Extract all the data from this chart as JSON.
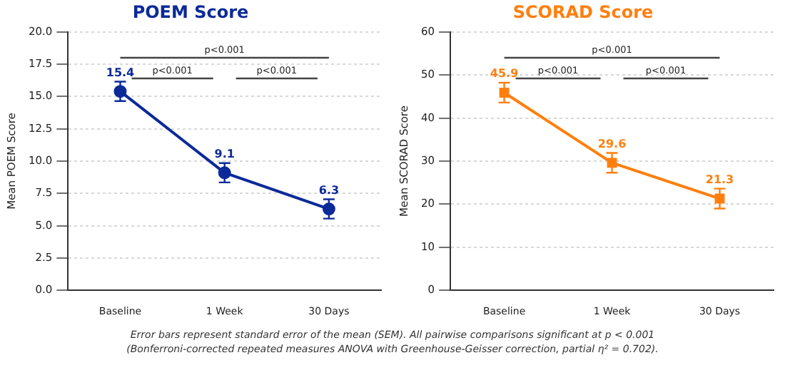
{
  "chart_data": [
    {
      "type": "line",
      "title": "POEM Score",
      "ylabel": "Mean POEM Score",
      "categories": [
        "Baseline",
        "1 Week",
        "30 Days"
      ],
      "series": [
        {
          "color": "#0c2a98",
          "values": [
            15.4,
            9.1,
            6.3
          ],
          "errors": [
            0.75,
            0.75,
            0.75
          ]
        }
      ],
      "data_labels": true,
      "marker": "circle",
      "line_style": "solid",
      "grid": "y",
      "legend": false,
      "ylim": [
        0,
        20
      ],
      "yticks": [
        {
          "value": 0,
          "label": "0.0"
        },
        2.5,
        {
          "value": 5,
          "label": "5.0"
        },
        7.5,
        {
          "value": 10,
          "label": "10.0"
        },
        12.5,
        {
          "value": 15,
          "label": "15.0"
        },
        17.5,
        {
          "value": 20,
          "label": "20.0"
        }
      ],
      "annotations": [
        "p<0.001",
        "p<0.001",
        "p<0.001"
      ]
    },
    {
      "type": "line",
      "title": "SCORAD Score",
      "ylabel": "Mean SCORAD Score",
      "categories": [
        "Baseline",
        "1 Week",
        "30 Days"
      ],
      "series": [
        {
          "color": "#ff7f0e",
          "values": [
            45.9,
            29.6,
            21.3
          ],
          "errors": [
            2.3,
            2.3,
            2.3
          ]
        }
      ],
      "data_labels": true,
      "marker": "square",
      "line_style": "solid",
      "grid": "y",
      "legend": false,
      "ylim": [
        0,
        60
      ],
      "yticks": [
        0,
        10,
        20,
        30,
        40,
        50,
        60
      ],
      "annotations": [
        "p<0.001",
        "p<0.001",
        "p<0.001"
      ]
    },
    {
      "type": "other",
      "annotations": [
        "Error bars represent standard error of the mean (SEM). All pairwise comparisons significant at p < 0.001",
        "(Bonferroni-corrected repeated measures ANOVA with Greenhouse-Geisser correction, partial η² = 0.702)."
      ]
    }
  ]
}
